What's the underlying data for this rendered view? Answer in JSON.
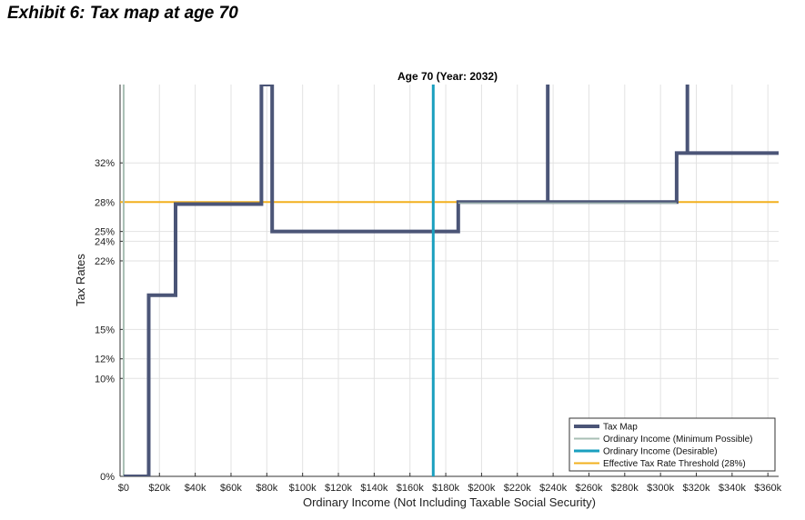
{
  "page": {
    "exhibit_title": "Exhibit 6: Tax map at age 70"
  },
  "chart_data": {
    "type": "line",
    "title": "Age 70 (Year: 2032)",
    "xlabel": "Ordinary Income (Not Including Taxable Social Security)",
    "ylabel": "Tax Rates",
    "xlim": [
      -2000,
      366000
    ],
    "ylim": [
      0,
      40
    ],
    "x_ticks": [
      0,
      20000,
      40000,
      60000,
      80000,
      100000,
      120000,
      140000,
      160000,
      180000,
      200000,
      220000,
      240000,
      260000,
      280000,
      300000,
      320000,
      340000,
      360000
    ],
    "x_tick_labels": [
      "$0",
      "$20k",
      "$40k",
      "$60k",
      "$80k",
      "$100k",
      "$120k",
      "$140k",
      "$160k",
      "$180k",
      "$200k",
      "$220k",
      "$240k",
      "$260k",
      "$280k",
      "$300k",
      "$320k",
      "$340k",
      "$360k"
    ],
    "y_ticks": [
      0,
      10,
      12,
      15,
      22,
      24,
      25,
      28,
      32
    ],
    "y_tick_labels": [
      "0%",
      "10%",
      "12%",
      "15%",
      "22%",
      "24%",
      "25%",
      "28%",
      "32%"
    ],
    "grid": true,
    "legend_position": "bottom-right",
    "series": [
      {
        "name": "Tax Map",
        "color": "#4b5577",
        "x": [
          0,
          14000,
          14000,
          29000,
          29000,
          77000,
          77000,
          77000,
          83000,
          83000,
          83000,
          187000,
          187000,
          237000,
          237000,
          237000,
          309000,
          309000,
          315000,
          315000,
          315000,
          366000
        ],
        "y": [
          0,
          0,
          18.5,
          18.5,
          27.8,
          27.8,
          40,
          40,
          40,
          40,
          25,
          25,
          28,
          28,
          40,
          28,
          28,
          33,
          33,
          40,
          33,
          33
        ]
      },
      {
        "name": "Ordinary Income (Minimum Possible)",
        "color": "#a8bfb4",
        "x": [
          187000,
          309000
        ],
        "y": [
          27.9,
          27.9
        ],
        "vline_x": 0
      },
      {
        "name": "Ordinary Income (Desirable)",
        "color": "#1a9fbf",
        "vline_x": 173000
      },
      {
        "name": "Effective Tax Rate Threshold (28%)",
        "color": "#f2b01e",
        "hline_y": 28
      }
    ]
  }
}
